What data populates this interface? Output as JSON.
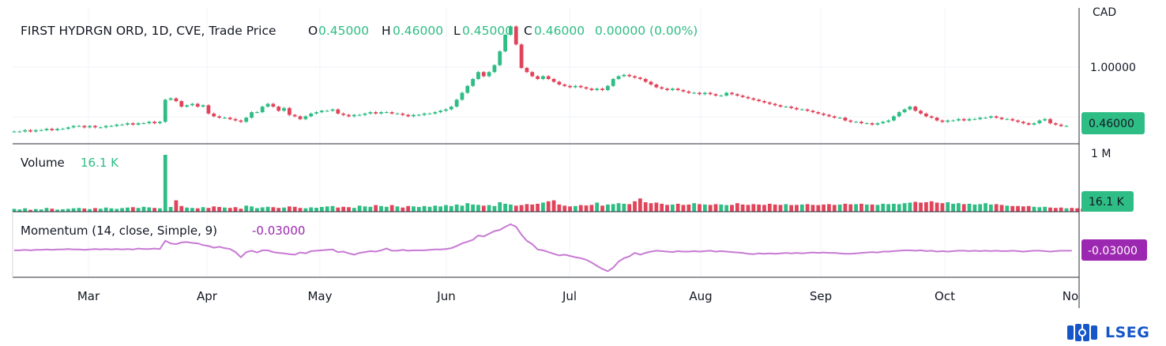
{
  "legend": {
    "title": "FIRST HYDRGN ORD, 1D, CVE, Trade Price",
    "o_label": "O",
    "o_value": "0.45000",
    "h_label": "H",
    "h_value": "0.46000",
    "l_label": "L",
    "l_value": "0.45000",
    "c_label": "C",
    "c_value": "0.46000",
    "change": "0.00000 (0.00%)"
  },
  "price_axis": {
    "currency": "CAD",
    "tick": "1.00000",
    "last_price": "0.46000"
  },
  "volume_pane": {
    "label": "Volume",
    "value": "16.1 K",
    "axis_tick": "1 M",
    "last_value": "16.1 K"
  },
  "momentum_pane": {
    "label": "Momentum (14, close, Simple, 9)",
    "value": "-0.03000",
    "last_value": "-0.03000"
  },
  "logo": {
    "text": "LSEG"
  },
  "colors": {
    "up": "#2ebd85",
    "down": "#e0445a",
    "momentum": "#c77ad3",
    "momentum_badge": "#9c27b0",
    "badge_green": "#2ebd85",
    "logo": "#1556c9"
  },
  "chart_data": {
    "type": "candlestick",
    "x_tick_labels": [
      "Mar",
      "Apr",
      "May",
      "Jun",
      "Jul",
      "Aug",
      "Sep",
      "Oct",
      "No"
    ],
    "price_ylim": [
      0.4,
      1.2
    ],
    "price_series": [
      0.42,
      0.42,
      0.43,
      0.42,
      0.43,
      0.43,
      0.44,
      0.43,
      0.44,
      0.44,
      0.45,
      0.46,
      0.46,
      0.45,
      0.46,
      0.45,
      0.45,
      0.46,
      0.46,
      0.47,
      0.47,
      0.48,
      0.47,
      0.48,
      0.48,
      0.49,
      0.48,
      0.49,
      0.65,
      0.66,
      0.64,
      0.6,
      0.61,
      0.62,
      0.6,
      0.61,
      0.55,
      0.53,
      0.52,
      0.52,
      0.51,
      0.5,
      0.49,
      0.52,
      0.56,
      0.56,
      0.6,
      0.62,
      0.6,
      0.57,
      0.59,
      0.54,
      0.53,
      0.51,
      0.53,
      0.55,
      0.56,
      0.57,
      0.57,
      0.58,
      0.55,
      0.54,
      0.53,
      0.54,
      0.54,
      0.55,
      0.56,
      0.55,
      0.56,
      0.56,
      0.55,
      0.55,
      0.54,
      0.53,
      0.54,
      0.54,
      0.55,
      0.55,
      0.56,
      0.57,
      0.58,
      0.6,
      0.65,
      0.7,
      0.75,
      0.8,
      0.85,
      0.82,
      0.85,
      0.9,
      1.0,
      1.12,
      1.18,
      1.05,
      0.88,
      0.85,
      0.82,
      0.8,
      0.82,
      0.8,
      0.78,
      0.76,
      0.75,
      0.74,
      0.75,
      0.74,
      0.73,
      0.72,
      0.73,
      0.72,
      0.75,
      0.8,
      0.82,
      0.83,
      0.82,
      0.81,
      0.8,
      0.78,
      0.76,
      0.74,
      0.73,
      0.72,
      0.73,
      0.72,
      0.71,
      0.7,
      0.7,
      0.69,
      0.7,
      0.69,
      0.68,
      0.68,
      0.7,
      0.69,
      0.68,
      0.67,
      0.66,
      0.65,
      0.64,
      0.63,
      0.62,
      0.61,
      0.6,
      0.6,
      0.59,
      0.58,
      0.58,
      0.57,
      0.56,
      0.55,
      0.54,
      0.53,
      0.52,
      0.52,
      0.5,
      0.49,
      0.49,
      0.48,
      0.48,
      0.47,
      0.48,
      0.49,
      0.5,
      0.53,
      0.56,
      0.58,
      0.6,
      0.57,
      0.55,
      0.53,
      0.52,
      0.5,
      0.49,
      0.5,
      0.5,
      0.51,
      0.5,
      0.51,
      0.51,
      0.52,
      0.52,
      0.53,
      0.52,
      0.51,
      0.51,
      0.5,
      0.49,
      0.48,
      0.47,
      0.48,
      0.5,
      0.51,
      0.48,
      0.47,
      0.46,
      0.46
    ],
    "volume_series": [
      1.5,
      1.2,
      1.8,
      1.0,
      1.4,
      1.2,
      2.0,
      1.6,
      1.1,
      1.3,
      1.5,
      1.8,
      2.0,
      1.7,
      1.4,
      1.9,
      1.6,
      2.2,
      1.8,
      1.5,
      1.9,
      2.2,
      2.4,
      2.0,
      2.6,
      2.3,
      2.0,
      1.8,
      30,
      2.5,
      6,
      3,
      2.2,
      2.0,
      1.8,
      2.4,
      2.0,
      2.8,
      2.5,
      2.2,
      2.0,
      2.4,
      1.6,
      3.2,
      2.8,
      1.9,
      2.3,
      2.6,
      2.4,
      2.0,
      2.2,
      2.8,
      2.6,
      2.0,
      1.8,
      2.3,
      2.1,
      2.5,
      2.8,
      3.0,
      2.2,
      2.6,
      2.4,
      2.0,
      3.2,
      2.8,
      2.6,
      3.5,
      3.0,
      2.6,
      3.5,
      2.8,
      2.2,
      3.0,
      2.8,
      2.5,
      3.0,
      2.6,
      3.2,
      2.8,
      3.5,
      3.0,
      3.8,
      3.2,
      4.5,
      3.8,
      3.6,
      3.2,
      3.5,
      3.0,
      5.0,
      4.2,
      3.8,
      3.2,
      3.5,
      4.0,
      3.8,
      4.2,
      4.8,
      5.5,
      6,
      3.8,
      3.2,
      2.8,
      3.0,
      3.5,
      3.3,
      3.6,
      4.8,
      3.2,
      3.8,
      4.0,
      4.5,
      4.2,
      4.0,
      5.5,
      7,
      5.0,
      4.5,
      4.8,
      4.2,
      3.6,
      3.8,
      4.2,
      3.6,
      3.8,
      4.5,
      4.0,
      3.8,
      3.6,
      4.0,
      3.8,
      3.5,
      3.6,
      4.5,
      3.8,
      3.6,
      4.0,
      3.8,
      3.6,
      4.2,
      3.8,
      3.6,
      4.0,
      3.5,
      3.6,
      3.8,
      4.0,
      3.6,
      3.5,
      3.8,
      4.0,
      3.6,
      3.8,
      4.2,
      3.9,
      4.0,
      4.2,
      3.8,
      3.8,
      3.6,
      4.2,
      4.0,
      4.2,
      4.0,
      4.5,
      4.8,
      5.2,
      4.8,
      5.0,
      5.5,
      4.8,
      4.5,
      5.0,
      4.2,
      4.5,
      4.0,
      4.2,
      3.8,
      4.0,
      4.5,
      3.8,
      4.0,
      3.6,
      3.2,
      3.0,
      3.0,
      2.8,
      3.0,
      2.6,
      2.4,
      2.6,
      2.2,
      2.0,
      2.2,
      1.8,
      2.0,
      1.8,
      1.6
    ],
    "momentum_series": [
      -0.02,
      -0.02,
      -0.01,
      -0.02,
      -0.01,
      -0.01,
      0.0,
      -0.01,
      0.0,
      0.0,
      0.01,
      0.0,
      0.0,
      -0.01,
      0.0,
      0.01,
      0.0,
      0.01,
      0.0,
      0.01,
      0.0,
      0.01,
      0.0,
      0.02,
      0.01,
      0.01,
      0.02,
      0.01,
      0.2,
      0.14,
      0.12,
      0.16,
      0.17,
      0.15,
      0.14,
      0.1,
      0.08,
      0.04,
      0.06,
      0.03,
      0.01,
      -0.06,
      -0.18,
      -0.06,
      -0.03,
      -0.07,
      -0.02,
      -0.02,
      -0.06,
      -0.08,
      -0.09,
      -0.11,
      -0.12,
      -0.07,
      -0.09,
      -0.04,
      -0.03,
      -0.02,
      -0.01,
      0.0,
      -0.06,
      -0.05,
      -0.09,
      -0.12,
      -0.08,
      -0.06,
      -0.04,
      -0.05,
      -0.02,
      0.02,
      -0.03,
      -0.03,
      -0.01,
      -0.03,
      -0.02,
      -0.02,
      -0.02,
      -0.01,
      0.0,
      0.0,
      0.01,
      0.03,
      0.08,
      0.14,
      0.18,
      0.22,
      0.32,
      0.3,
      0.36,
      0.42,
      0.45,
      0.52,
      0.58,
      0.52,
      0.34,
      0.2,
      0.12,
      0.0,
      -0.02,
      -0.06,
      -0.1,
      -0.14,
      -0.12,
      -0.15,
      -0.18,
      -0.2,
      -0.24,
      -0.3,
      -0.38,
      -0.45,
      -0.5,
      -0.42,
      -0.28,
      -0.2,
      -0.16,
      -0.08,
      -0.12,
      -0.08,
      -0.05,
      -0.03,
      -0.04,
      -0.05,
      -0.06,
      -0.04,
      -0.05,
      -0.05,
      -0.04,
      -0.05,
      -0.04,
      -0.03,
      -0.05,
      -0.04,
      -0.05,
      -0.06,
      -0.07,
      -0.08,
      -0.1,
      -0.11,
      -0.09,
      -0.1,
      -0.09,
      -0.1,
      -0.09,
      -0.08,
      -0.09,
      -0.08,
      -0.09,
      -0.08,
      -0.07,
      -0.08,
      -0.07,
      -0.08,
      -0.08,
      -0.09,
      -0.1,
      -0.1,
      -0.09,
      -0.08,
      -0.07,
      -0.06,
      -0.07,
      -0.05,
      -0.05,
      -0.04,
      -0.03,
      -0.02,
      -0.02,
      -0.03,
      -0.02,
      -0.04,
      -0.03,
      -0.05,
      -0.04,
      -0.05,
      -0.04,
      -0.03,
      -0.03,
      -0.04,
      -0.03,
      -0.04,
      -0.03,
      -0.04,
      -0.03,
      -0.04,
      -0.04,
      -0.03,
      -0.04,
      -0.05,
      -0.04,
      -0.03,
      -0.03,
      -0.04,
      -0.05,
      -0.04,
      -0.03,
      -0.03,
      -0.03
    ],
    "volume_ylim": [
      0,
      30
    ],
    "momentum_ylim": [
      -0.55,
      0.65
    ]
  }
}
